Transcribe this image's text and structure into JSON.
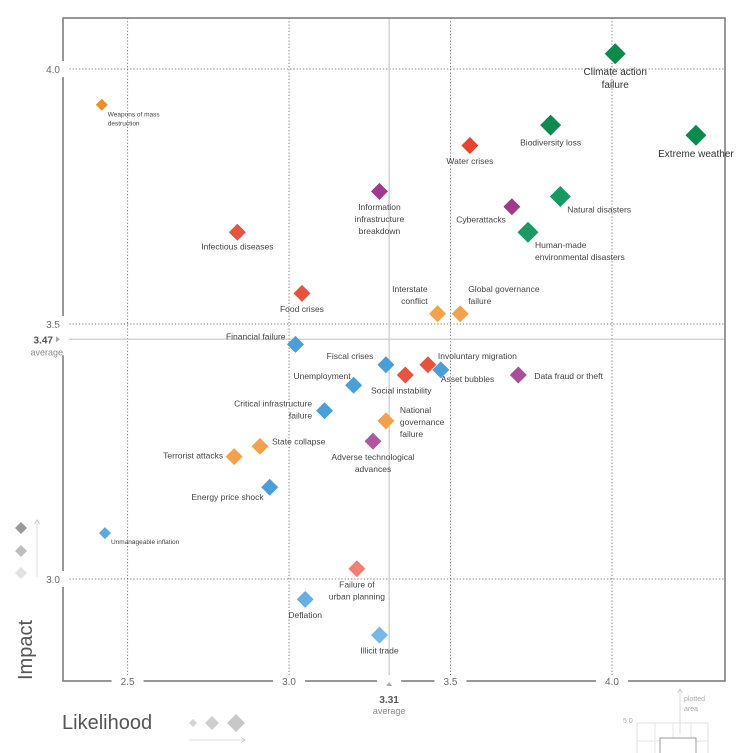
{
  "chart_data": {
    "type": "scatter",
    "title": "",
    "xlabel": "Likelihood",
    "ylabel": "Impact",
    "xlim": [
      2.3,
      4.35
    ],
    "ylim": [
      2.8,
      4.1
    ],
    "xticks": [
      2.5,
      3.0,
      3.5,
      4.0
    ],
    "xtick_labels": [
      "2.5",
      "3.0",
      "3.5",
      "4.0"
    ],
    "yticks": [
      3.0,
      3.5,
      4.0
    ],
    "ytick_labels": [
      "3.0",
      "3.5",
      "4.0"
    ],
    "grid": true,
    "averages": {
      "likelihood": {
        "value": 3.31,
        "label": "3.31",
        "caption": "average"
      },
      "impact": {
        "value": 3.47,
        "label": "3.47",
        "caption": "average"
      }
    },
    "categories": {
      "economic": "#4a9fd8",
      "environmental": "#0e8a4e",
      "geopolitical": "#f0a04b",
      "societal": "#e8533f",
      "technological": "#a3408f"
    },
    "points": [
      {
        "name": "Climate action failure",
        "lines": [
          "Climate action",
          "failure"
        ],
        "x": 4.01,
        "y": 4.03,
        "category": "environmental",
        "size": 3,
        "color": "#0b8a4c",
        "label_pos": "below",
        "label_size": "lg"
      },
      {
        "name": "Extreme weather",
        "lines": [
          "Extreme weather"
        ],
        "x": 4.26,
        "y": 3.87,
        "category": "environmental",
        "size": 3,
        "color": "#0b8a4c",
        "label_pos": "below",
        "label_size": "lg"
      },
      {
        "name": "Biodiversity loss",
        "lines": [
          "Biodiversity loss"
        ],
        "x": 3.81,
        "y": 3.89,
        "category": "environmental",
        "size": 3,
        "color": "#0e8a4e",
        "label_pos": "below",
        "label_size": "md"
      },
      {
        "name": "Water crises",
        "lines": [
          "Water crises"
        ],
        "x": 3.56,
        "y": 3.85,
        "category": "societal",
        "size": 2,
        "color": "#e5452f",
        "label_pos": "below",
        "label_size": "md"
      },
      {
        "name": "Natural disasters",
        "lines": [
          "Natural disasters"
        ],
        "x": 3.84,
        "y": 3.75,
        "category": "environmental",
        "size": 3,
        "color": "#179a60",
        "label_pos": "right-below",
        "label_size": "md"
      },
      {
        "name": "Cyberattacks",
        "lines": [
          "Cyberattacks"
        ],
        "x": 3.69,
        "y": 3.73,
        "category": "technological",
        "size": 2,
        "color": "#a03a8c",
        "label_pos": "left-below",
        "label_size": "md"
      },
      {
        "name": "Human-made environmental disasters",
        "lines": [
          "Human-made",
          "environmental disasters"
        ],
        "x": 3.74,
        "y": 3.68,
        "category": "environmental",
        "size": 3,
        "color": "#1a9a62",
        "label_pos": "right-below",
        "label_size": "md"
      },
      {
        "name": "Information infrastructure breakdown",
        "lines": [
          "Information",
          "infrastructure",
          "breakdown"
        ],
        "x": 3.28,
        "y": 3.76,
        "category": "technological",
        "size": 2,
        "color": "#a03a8c",
        "label_pos": "below",
        "label_size": "md"
      },
      {
        "name": "Infectious diseases",
        "lines": [
          "Infectious diseases"
        ],
        "x": 2.84,
        "y": 3.68,
        "category": "societal",
        "size": 2,
        "color": "#e8533f",
        "label_pos": "below",
        "label_size": "sm2"
      },
      {
        "name": "Weapons of mass destruction",
        "lines": [
          "Weapons of mass",
          "destruction"
        ],
        "x": 2.42,
        "y": 3.93,
        "category": "geopolitical",
        "size": 1,
        "color": "#ef8c22",
        "label_pos": "right-below",
        "label_size": "sm"
      },
      {
        "name": "Food crises",
        "lines": [
          "Food crises"
        ],
        "x": 3.04,
        "y": 3.56,
        "category": "societal",
        "size": 2,
        "color": "#e8533f",
        "label_pos": "below",
        "label_size": "md"
      },
      {
        "name": "Interstate conflict",
        "lines": [
          "Interstate",
          "conflict"
        ],
        "x": 3.46,
        "y": 3.52,
        "category": "geopolitical",
        "size": 2,
        "color": "#f2a24c",
        "label_pos": "left-above",
        "label_size": "md"
      },
      {
        "name": "Global governance failure",
        "lines": [
          "Global governance",
          "failure"
        ],
        "x": 3.53,
        "y": 3.52,
        "category": "geopolitical",
        "size": 2,
        "color": "#f2a24c",
        "label_pos": "right-above",
        "label_size": "md"
      },
      {
        "name": "Financial failure",
        "lines": [
          "Financial failure"
        ],
        "x": 3.02,
        "y": 3.46,
        "category": "economic",
        "size": 2,
        "color": "#4a9fd8",
        "label_pos": "left-above",
        "label_size": "md"
      },
      {
        "name": "Fiscal crises",
        "lines": [
          "Fiscal crises"
        ],
        "x": 3.3,
        "y": 3.42,
        "category": "economic",
        "size": 2,
        "color": "#4a9fd8",
        "label_pos": "left",
        "label_size": "md"
      },
      {
        "name": "Involuntary migration",
        "lines": [
          "Involuntary migration"
        ],
        "x": 3.43,
        "y": 3.42,
        "category": "societal",
        "size": 2,
        "color": "#e8533f",
        "label_pos": "right-above",
        "label_size": "md"
      },
      {
        "name": "Social instability",
        "lines": [
          "Social instability"
        ],
        "x": 3.36,
        "y": 3.4,
        "category": "societal",
        "size": 2,
        "color": "#e8533f",
        "label_pos": "below-left",
        "label_size": "md"
      },
      {
        "name": "Asset bubbles",
        "lines": [
          "Asset bubbles"
        ],
        "x": 3.47,
        "y": 3.41,
        "category": "economic",
        "size": 2,
        "color": "#4a9fd8",
        "label_pos": "right-below",
        "label_size": "md"
      },
      {
        "name": "Data fraud or theft",
        "lines": [
          "Data fraud or theft"
        ],
        "x": 3.71,
        "y": 3.4,
        "category": "technological",
        "size": 2,
        "color": "#a84f98",
        "label_pos": "right",
        "label_size": "md"
      },
      {
        "name": "Unemployment",
        "lines": [
          "Unemployment"
        ],
        "x": 3.2,
        "y": 3.38,
        "category": "economic",
        "size": 2,
        "color": "#4a9fd8",
        "label_pos": "left-above",
        "label_size": "md"
      },
      {
        "name": "Critical infrastructure failure",
        "lines": [
          "Critical infrastructure",
          "failure"
        ],
        "x": 3.11,
        "y": 3.33,
        "category": "economic",
        "size": 2,
        "color": "#4a9fd8",
        "label_pos": "left",
        "label_size": "md"
      },
      {
        "name": "National governance failure",
        "lines": [
          "National",
          "governance",
          "failure"
        ],
        "x": 3.3,
        "y": 3.31,
        "category": "geopolitical",
        "size": 2,
        "color": "#f2a24c",
        "label_pos": "right",
        "label_size": "md"
      },
      {
        "name": "Adverse technological advances",
        "lines": [
          "Adverse technological",
          "advances"
        ],
        "x": 3.26,
        "y": 3.27,
        "category": "technological",
        "size": 2,
        "color": "#b055a0",
        "label_pos": "below",
        "label_size": "md"
      },
      {
        "name": "State collapse",
        "lines": [
          "State collapse"
        ],
        "x": 2.91,
        "y": 3.26,
        "category": "geopolitical",
        "size": 2,
        "color": "#f2a24c",
        "label_pos": "right-above",
        "label_size": "sm2"
      },
      {
        "name": "Terrorist attacks",
        "lines": [
          "Terrorist attacks"
        ],
        "x": 2.83,
        "y": 3.24,
        "category": "geopolitical",
        "size": 2,
        "color": "#f2a24c",
        "label_pos": "left",
        "label_size": "sm2"
      },
      {
        "name": "Energy price shock",
        "lines": [
          "Energy price shock"
        ],
        "x": 2.94,
        "y": 3.18,
        "category": "economic",
        "size": 2,
        "color": "#4a9fd8",
        "label_pos": "left-below",
        "label_size": "md"
      },
      {
        "name": "Unmanageable inflation",
        "lines": [
          "Unmanageable inflation"
        ],
        "x": 2.43,
        "y": 3.09,
        "category": "economic",
        "size": 1,
        "color": "#5aaae0",
        "label_pos": "right",
        "label_size": "sm"
      },
      {
        "name": "Failure of urban planning",
        "lines": [
          "Failure of",
          "urban planning"
        ],
        "x": 3.21,
        "y": 3.02,
        "category": "societal",
        "size": 2,
        "color": "#ef7f72",
        "label_pos": "below",
        "label_size": "md"
      },
      {
        "name": "Deflation",
        "lines": [
          "Deflation"
        ],
        "x": 3.05,
        "y": 2.96,
        "category": "economic",
        "size": 2,
        "color": "#69b0e2",
        "label_pos": "below",
        "label_size": "md"
      },
      {
        "name": "Illicit trade",
        "lines": [
          "Illicit trade"
        ],
        "x": 3.28,
        "y": 2.89,
        "category": "economic",
        "size": 2,
        "color": "#79b8e6",
        "label_pos": "below",
        "label_size": "md"
      }
    ],
    "legend": {
      "impact_scale_icons": [
        "high",
        "medium",
        "low"
      ],
      "likelihood_scale_icons": [
        "small",
        "medium",
        "large"
      ]
    },
    "inset": {
      "label_lines": [
        "plotted",
        "area"
      ],
      "scale_label": "5.0"
    }
  }
}
